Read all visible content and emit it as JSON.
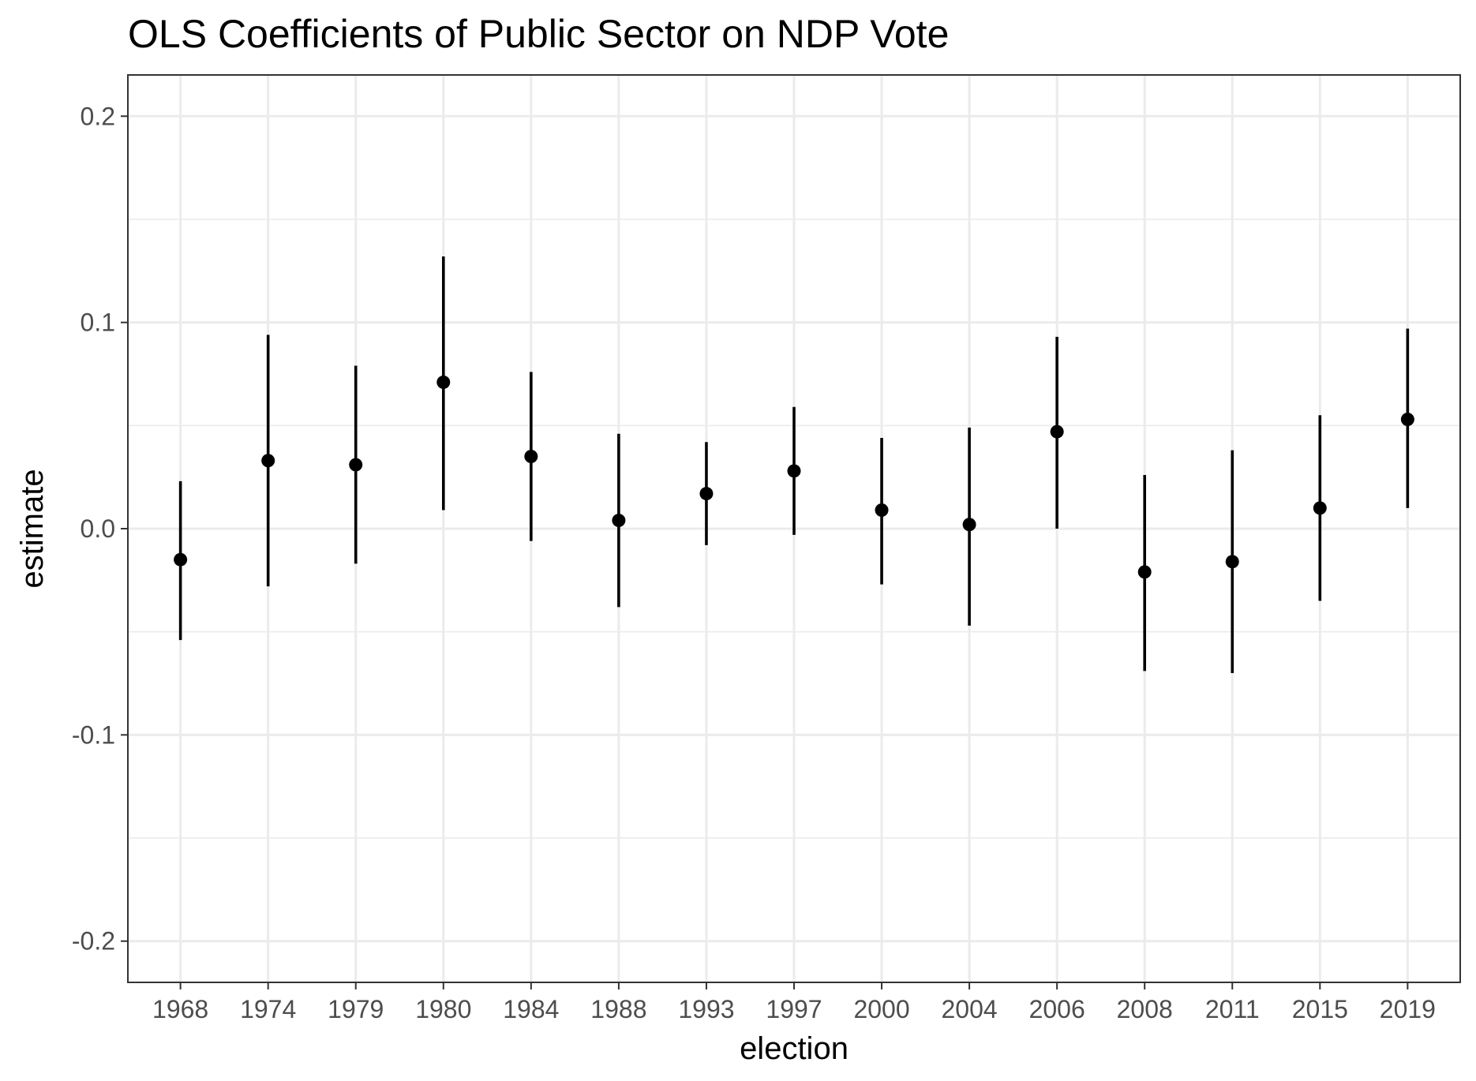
{
  "chart_data": {
    "type": "scatter",
    "title": "OLS Coefficients of Public Sector on NDP Vote",
    "xlabel": "election",
    "ylabel": "estimate",
    "categories": [
      "1968",
      "1974",
      "1979",
      "1980",
      "1984",
      "1988",
      "1993",
      "1997",
      "2000",
      "2004",
      "2006",
      "2008",
      "2011",
      "2015",
      "2019"
    ],
    "estimate": [
      -0.015,
      0.033,
      0.031,
      0.071,
      0.035,
      0.004,
      0.017,
      0.028,
      0.009,
      0.002,
      0.047,
      -0.021,
      -0.016,
      0.01,
      0.053
    ],
    "conf_low": [
      -0.054,
      -0.028,
      -0.017,
      0.009,
      -0.006,
      -0.038,
      -0.008,
      -0.003,
      -0.027,
      -0.047,
      0.0,
      -0.069,
      -0.07,
      -0.035,
      0.01
    ],
    "conf_high": [
      0.023,
      0.094,
      0.079,
      0.132,
      0.076,
      0.046,
      0.042,
      0.059,
      0.044,
      0.049,
      0.093,
      0.026,
      0.038,
      0.055,
      0.097
    ],
    "ylim": [
      -0.22,
      0.22
    ],
    "yticks": [
      -0.2,
      -0.1,
      0.0,
      0.1,
      0.2
    ],
    "ytick_labels": [
      "-0.2",
      "-0.1",
      "0.0",
      "0.1",
      "0.2"
    ],
    "grid": true,
    "legend": "none",
    "colors": {
      "point": "#000000",
      "grid": "#ebebeb",
      "text": "#4d4d4d"
    }
  }
}
